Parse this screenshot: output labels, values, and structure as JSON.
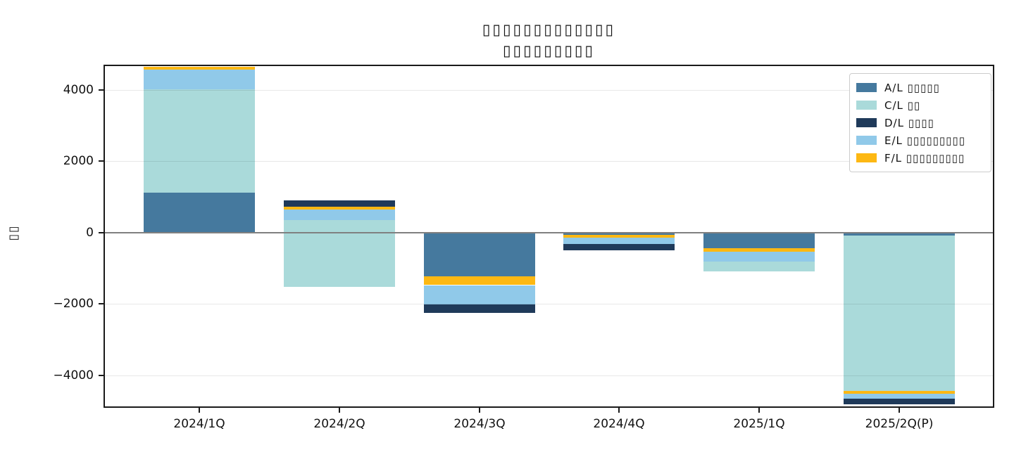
{
  "title": {
    "line1": "▯▯▯▯▯▯▯▯▯▯▯▯▯",
    "line2": "▯▯▯▯▯▯▯▯▯"
  },
  "axes": {
    "ylabel": "▯▯",
    "y_ticks": [
      {
        "label": "4000",
        "value": 4000
      },
      {
        "label": "2000",
        "value": 2000
      },
      {
        "label": "0",
        "value": 0
      },
      {
        "label": "−2000",
        "value": -2000
      },
      {
        "label": "−4000",
        "value": -4000
      }
    ],
    "x_categories": [
      "2024/1Q",
      "2024/2Q",
      "2024/3Q",
      "2024/4Q",
      "2025/1Q",
      "2025/2Q(P)"
    ]
  },
  "legend": {
    "items": [
      {
        "series": "A",
        "label": "A/L ▯▯▯▯▯",
        "color": "#45799e"
      },
      {
        "series": "C",
        "label": "C/L ▯▯",
        "color": "#aadada"
      },
      {
        "series": "D",
        "label": "D/L ▯▯▯▯",
        "color": "#1f3a5a"
      },
      {
        "series": "E",
        "label": "E/L ▯▯▯▯▯▯▯▯▯",
        "color": "#90c9e9"
      },
      {
        "series": "F",
        "label": "F/L ▯▯▯▯▯▯▯▯▯",
        "color": "#fdb813"
      }
    ]
  },
  "chart_data": {
    "type": "bar",
    "stacked": true,
    "grid": "horizontal",
    "legend_position": "upper-right",
    "ylim": [
      -4870,
      4670
    ],
    "categories": [
      "2024/1Q",
      "2024/2Q",
      "2024/3Q",
      "2024/4Q",
      "2025/1Q",
      "2025/2Q(P)"
    ],
    "colors": {
      "A": "#45799e",
      "C": "#aadada",
      "D": "#1f3a5a",
      "E": "#90c9e9",
      "F": "#fdb813"
    },
    "bars": [
      {
        "category": "2024/1Q",
        "segments": [
          {
            "series": "A",
            "from": 0,
            "to": 1120
          },
          {
            "series": "C",
            "from": 1120,
            "to": 4010
          },
          {
            "series": "E",
            "from": 4010,
            "to": 4580
          },
          {
            "series": "F",
            "from": 4580,
            "to": 4660
          }
        ]
      },
      {
        "category": "2024/2Q",
        "segments": [
          {
            "series": "C",
            "from": -1525,
            "to": 345
          },
          {
            "series": "E",
            "from": 345,
            "to": 650
          },
          {
            "series": "F",
            "from": 650,
            "to": 735
          },
          {
            "series": "D",
            "from": 735,
            "to": 915
          }
        ]
      },
      {
        "category": "2024/3Q",
        "segments": [
          {
            "series": "A",
            "from": 0,
            "to": -1220
          },
          {
            "series": "F",
            "from": -1220,
            "to": -1470
          },
          {
            "series": "E",
            "from": -1470,
            "to": -2010
          },
          {
            "series": "D",
            "from": -2010,
            "to": -2250
          }
        ]
      },
      {
        "category": "2024/4Q",
        "segments": [
          {
            "series": "A",
            "from": 0,
            "to": -60
          },
          {
            "series": "F",
            "from": -60,
            "to": -145
          },
          {
            "series": "E",
            "from": -145,
            "to": -310
          },
          {
            "series": "D",
            "from": -310,
            "to": -490
          }
        ]
      },
      {
        "category": "2025/1Q",
        "segments": [
          {
            "series": "A",
            "from": 0,
            "to": -435
          },
          {
            "series": "F",
            "from": -435,
            "to": -535
          },
          {
            "series": "E",
            "from": -535,
            "to": -815
          },
          {
            "series": "C",
            "from": -815,
            "to": -1090
          }
        ]
      },
      {
        "category": "2025/2Q(P)",
        "segments": [
          {
            "series": "A",
            "from": 0,
            "to": -85
          },
          {
            "series": "C",
            "from": -85,
            "to": -4445
          },
          {
            "series": "F",
            "from": -4445,
            "to": -4510
          },
          {
            "series": "E",
            "from": -4510,
            "to": -4660
          },
          {
            "series": "D",
            "from": -4660,
            "to": -4815
          }
        ]
      }
    ]
  }
}
